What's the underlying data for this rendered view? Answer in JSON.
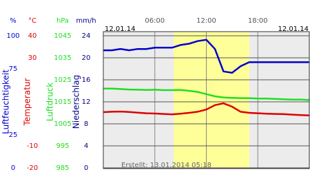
{
  "chart_data": {
    "type": "line",
    "date_left": "12.01.14",
    "date_right": "12.01.14",
    "footer": "Erstellt: 13.01.2014 05:18",
    "xlim": [
      0,
      24
    ],
    "xticks": [
      {
        "value": 6,
        "label": "06:00"
      },
      {
        "value": 12,
        "label": "12:00"
      },
      {
        "value": 18,
        "label": "18:00"
      }
    ],
    "daylight": [
      8.2,
      17
    ],
    "axes": [
      {
        "unit": "%",
        "label": "Luftfeuchtigkeit",
        "color": "#0000cc",
        "ylim": [
          0,
          100
        ],
        "yticks": [
          0,
          25,
          75,
          100
        ]
      },
      {
        "unit": "°C",
        "label": "Temperatur",
        "color": "#dd0000",
        "ylim": [
          -20,
          40
        ],
        "yticks": [
          -20,
          -10,
          30,
          40
        ]
      },
      {
        "unit": "hPa",
        "label": "Luftdruck",
        "color": "#22dd22",
        "ylim": [
          985,
          1045
        ],
        "yticks": [
          985,
          995,
          1005,
          1015,
          1025,
          1035,
          1045
        ]
      },
      {
        "unit": "mm/h",
        "label": "Niederschlag",
        "color": "#000080",
        "ylim": [
          0,
          24
        ],
        "yticks": [
          0,
          4,
          8,
          12,
          16,
          20,
          24
        ]
      }
    ],
    "x": [
      0,
      1,
      2,
      3,
      4,
      5,
      6,
      7,
      8,
      9,
      10,
      11,
      12,
      13,
      14,
      15,
      16,
      17,
      18,
      19,
      20,
      21,
      22,
      23,
      24
    ],
    "series": [
      {
        "axis": 0,
        "color": "#0000cc",
        "values": [
          89,
          89,
          90,
          89,
          90,
          90,
          91,
          91,
          91,
          93,
          94,
          96,
          97,
          90,
          73,
          72,
          77,
          80,
          80,
          80,
          80,
          80,
          80,
          80,
          80
        ]
      },
      {
        "axis": 2,
        "color": "#22dd22",
        "values": [
          1021,
          1021,
          1020.8,
          1020.6,
          1020.5,
          1020.4,
          1020.5,
          1020.3,
          1020.3,
          1020.4,
          1020,
          1019.5,
          1018.5,
          1017.5,
          1017,
          1016.8,
          1016.7,
          1016.7,
          1016.5,
          1016.5,
          1016.3,
          1016.2,
          1016,
          1016,
          1015.8
        ]
      },
      {
        "axis": 1,
        "color": "#dd0000",
        "values": [
          5.3,
          5.5,
          5.6,
          5.4,
          5.1,
          4.8,
          4.7,
          4.5,
          4.3,
          4.6,
          5,
          5.5,
          6.5,
          8.5,
          9.3,
          7.8,
          5.5,
          5,
          4.8,
          4.6,
          4.5,
          4.4,
          4.2,
          4,
          3.8
        ]
      }
    ]
  }
}
